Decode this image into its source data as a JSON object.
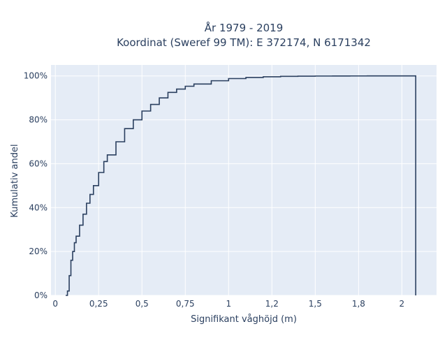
{
  "chart_data": {
    "type": "line",
    "step": true,
    "title_lines": [
      "År 1979 - 2019",
      "Koordinat (Sweref 99 TM): E 372174, N 6171342"
    ],
    "xlabel": "Signifikant våghöjd (m)",
    "ylabel": "Kumulativ andel",
    "xlim": [
      -0.025,
      2.2
    ],
    "ylim": [
      0,
      1.05
    ],
    "x_ticks": [
      {
        "value": 0,
        "label": "0"
      },
      {
        "value": 0.25,
        "label": "0,25"
      },
      {
        "value": 0.5,
        "label": "0,5"
      },
      {
        "value": 0.75,
        "label": "0,75"
      },
      {
        "value": 1,
        "label": "1"
      },
      {
        "value": 1.25,
        "label": "1,2"
      },
      {
        "value": 1.5,
        "label": "1,5"
      },
      {
        "value": 1.75,
        "label": "1,8"
      },
      {
        "value": 2,
        "label": "2"
      }
    ],
    "y_ticks": [
      {
        "value": 0,
        "label": "0%"
      },
      {
        "value": 0.2,
        "label": "20%"
      },
      {
        "value": 0.4,
        "label": "40%"
      },
      {
        "value": 0.6,
        "label": "60%"
      },
      {
        "value": 0.8,
        "label": "80%"
      },
      {
        "value": 1,
        "label": "100%"
      }
    ],
    "grid": true,
    "series": [
      {
        "line_color": "#2a3f5f",
        "x": [
          0.06,
          0.07,
          0.08,
          0.09,
          0.1,
          0.11,
          0.12,
          0.14,
          0.16,
          0.18,
          0.2,
          0.22,
          0.25,
          0.28,
          0.3,
          0.35,
          0.4,
          0.45,
          0.5,
          0.55,
          0.6,
          0.65,
          0.7,
          0.75,
          0.8,
          0.9,
          1.0,
          1.1,
          1.2,
          1.3,
          1.4,
          1.5,
          1.6,
          1.7,
          1.8,
          2.07,
          2.08
        ],
        "y": [
          0.0,
          0.02,
          0.09,
          0.16,
          0.2,
          0.24,
          0.27,
          0.32,
          0.37,
          0.42,
          0.46,
          0.5,
          0.56,
          0.61,
          0.64,
          0.7,
          0.76,
          0.8,
          0.84,
          0.87,
          0.9,
          0.925,
          0.94,
          0.953,
          0.963,
          0.978,
          0.988,
          0.993,
          0.996,
          0.998,
          0.999,
          0.9995,
          0.9998,
          0.9999,
          1.0,
          1.0,
          0.0
        ]
      }
    ]
  },
  "colors": {
    "plot_bg": "#e5ecf6",
    "grid": "#ffffff",
    "text": "#2a3f5f"
  }
}
